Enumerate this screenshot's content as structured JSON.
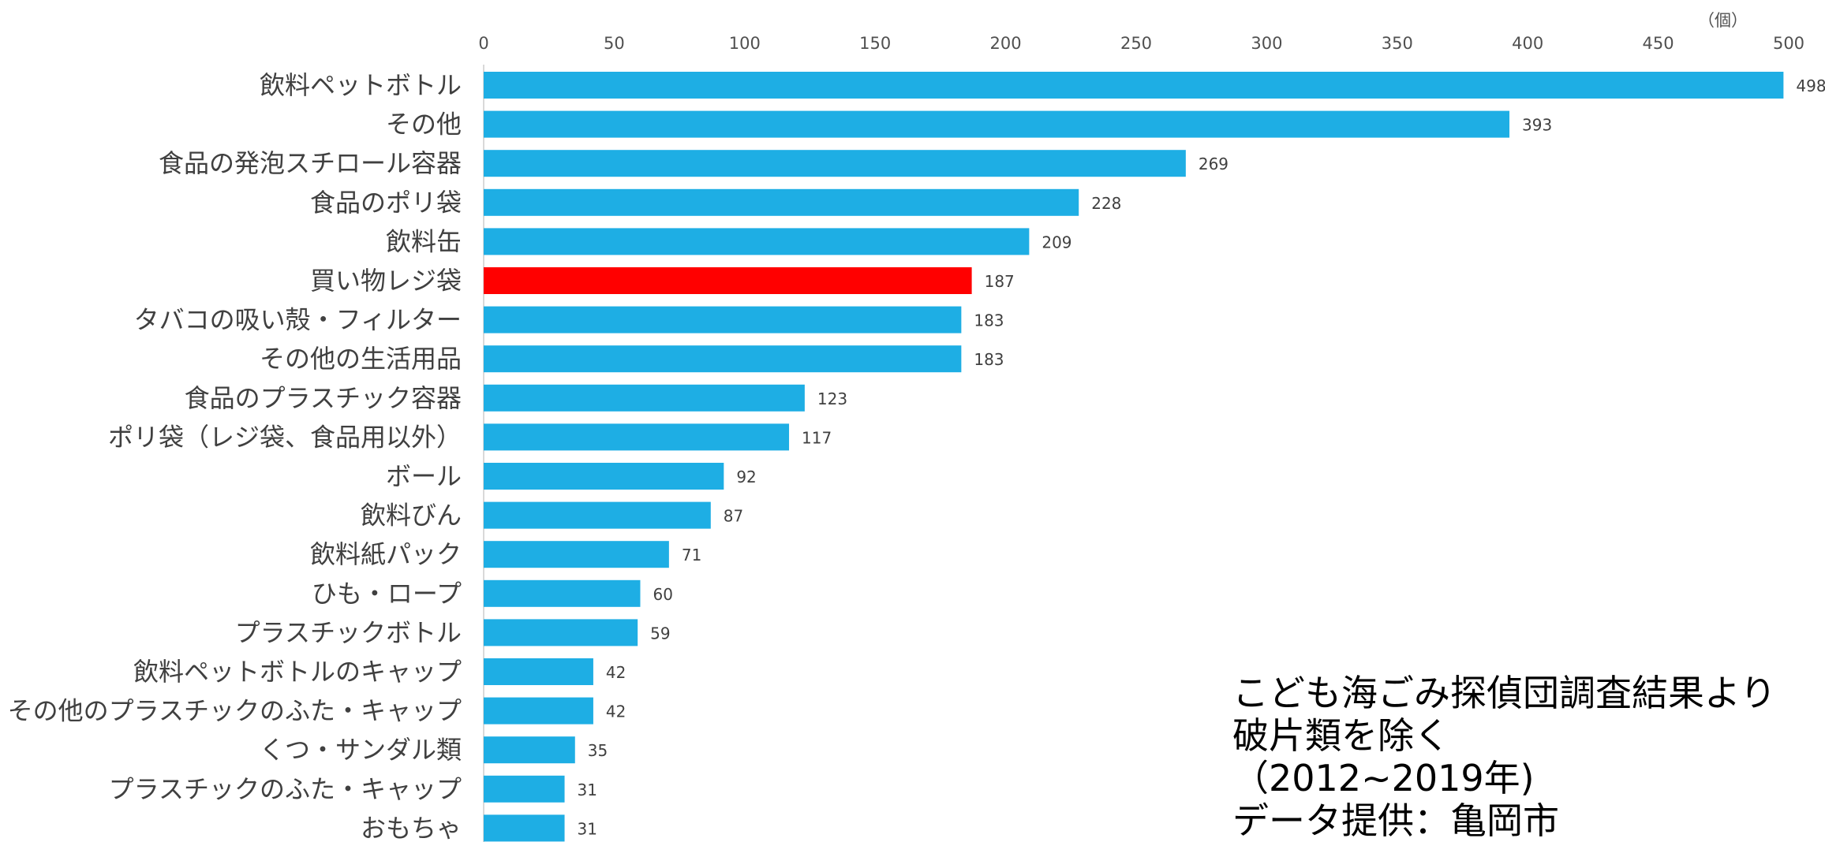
{
  "chart_data": {
    "type": "bar",
    "orientation": "horizontal",
    "title": "",
    "xlabel": "",
    "ylabel": "",
    "unit": "（個）",
    "xlim": [
      0,
      500
    ],
    "xticks": [
      0,
      50,
      100,
      150,
      200,
      250,
      300,
      350,
      400,
      450,
      500
    ],
    "grid": false,
    "legend": "none",
    "bar_color": "#1EAEE4",
    "highlight_color": "#FF0000",
    "categories": [
      "飲料ペットボトル",
      "その他",
      "食品の発泡スチロール容器",
      "食品のポリ袋",
      "飲料缶",
      "買い物レジ袋",
      "タバコの吸い殻・フィルター",
      "その他の生活用品",
      "食品のプラスチック容器",
      "ポリ袋（レジ袋、食品用以外）",
      "ボール",
      "飲料びん",
      "飲料紙パック",
      "ひも・ロープ",
      "プラスチックボトル",
      "飲料ペットボトルのキャップ",
      "その他のプラスチックのふた・キャップ",
      "くつ・サンダル類",
      "プラスチックのふた・キャップ",
      "おもちゃ"
    ],
    "values": [
      498,
      393,
      269,
      228,
      209,
      187,
      183,
      183,
      123,
      117,
      92,
      87,
      71,
      60,
      59,
      42,
      42,
      35,
      31,
      31
    ],
    "highlight": [
      "買い物レジ袋"
    ]
  },
  "note": {
    "line1": "こども海ごみ探偵団調査結果より",
    "line2": "破片類を除く",
    "line3": "（2012~2019年)",
    "line4": "データ提供：亀岡市"
  }
}
